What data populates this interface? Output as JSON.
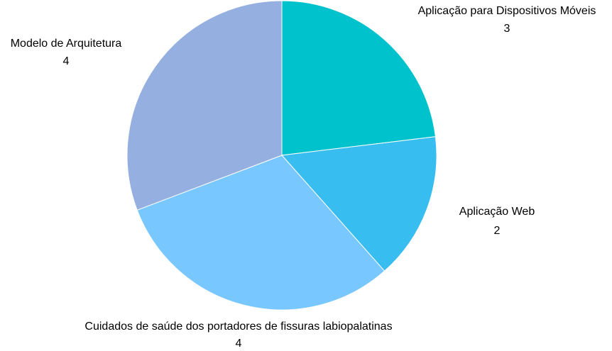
{
  "chart_data": {
    "type": "pie",
    "title": "",
    "slices": [
      {
        "label": "Aplicação para Dispositivos Móveis",
        "value": 3,
        "value_label": "3",
        "color": "#00c2cc"
      },
      {
        "label": "Aplicação Web",
        "value": 2,
        "value_label": "2",
        "color": "#38bdf0"
      },
      {
        "label": "Cuidados de saúde dos portadores de fissuras labiopalatinas",
        "value": 4,
        "value_label": "4",
        "color": "#78c7ff"
      },
      {
        "label": "Modelo de Arquitetura",
        "value": 4,
        "value_label": "4",
        "color": "#94afe0"
      }
    ],
    "start_angle_deg": 0,
    "direction": "clockwise",
    "legend": "none",
    "labels": "outside-with-value"
  }
}
